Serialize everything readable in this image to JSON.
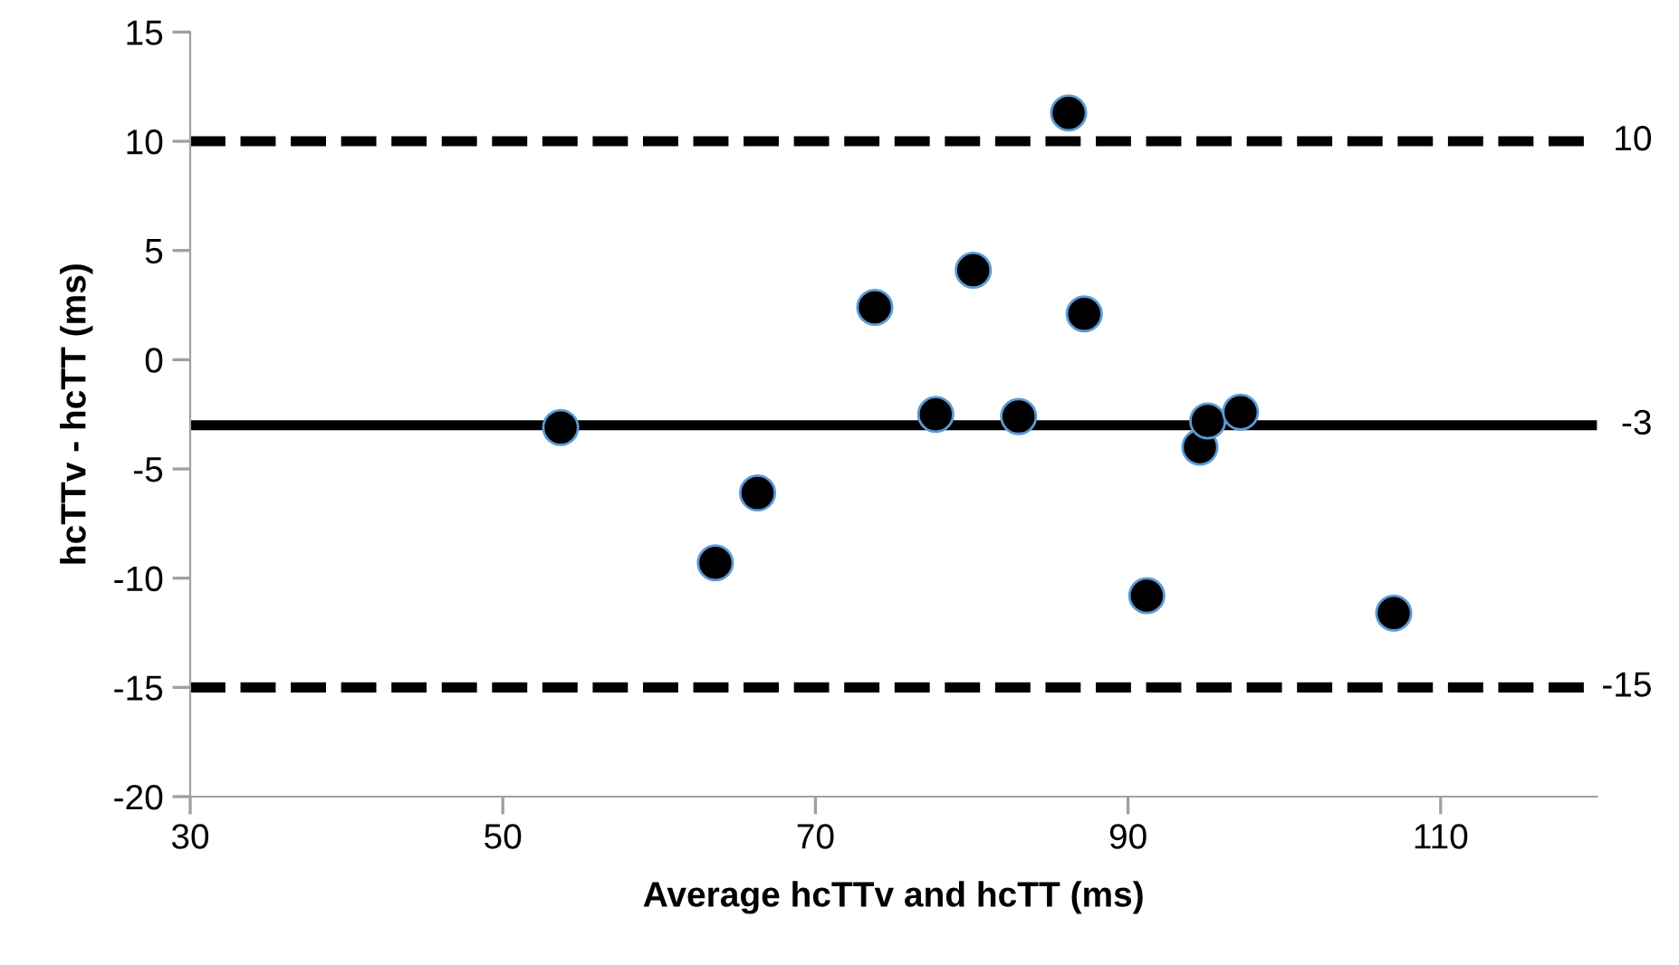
{
  "chart_data": {
    "type": "scatter",
    "xlabel": "Average hcTTv and hcTT (ms)",
    "ylabel": "hcTTv - hcTT (ms)",
    "x": [
      53.7,
      63.6,
      66.3,
      73.8,
      77.7,
      80.1,
      83.0,
      86.2,
      87.2,
      91.2,
      94.6,
      95.1,
      97.2,
      107.0
    ],
    "series": [
      {
        "color": "#000000",
        "values": [
          -3.1,
          -9.3,
          -6.1,
          2.4,
          -2.5,
          4.1,
          -2.6,
          11.3,
          2.1,
          -10.8,
          -4.0,
          -2.8,
          -2.4,
          -11.6
        ]
      }
    ],
    "marker": "circle",
    "grid": false,
    "xlim": [
      30,
      120
    ],
    "xticks": [
      30,
      50,
      70,
      90,
      110
    ],
    "ylim": [
      -20,
      15
    ],
    "yticks": [
      -20,
      -15,
      -10,
      -5,
      0,
      5,
      10,
      15
    ],
    "ref_lines": [
      {
        "axis": "y",
        "value": 10,
        "label": "10",
        "color": "#000000",
        "line_style": "dashed"
      },
      {
        "axis": "y",
        "value": -3,
        "label": "-3",
        "color": "#000000",
        "line_style": "solid"
      },
      {
        "axis": "y",
        "value": -15,
        "label": "-15",
        "color": "#000000",
        "line_style": "dashed"
      }
    ]
  }
}
